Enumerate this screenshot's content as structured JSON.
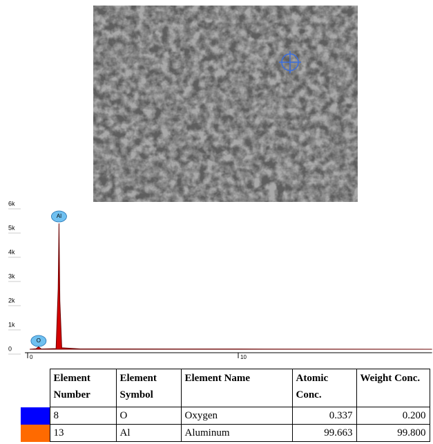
{
  "chart_data": {
    "type": "area",
    "color": "#d40000",
    "line_color": "#6b0000",
    "x": [
      0.1,
      0.4,
      0.52,
      0.65,
      1.35,
      1.45,
      1.49,
      1.53,
      1.62,
      2.5,
      10,
      19.2
    ],
    "values": [
      0,
      20,
      100,
      10,
      30,
      2500,
      5200,
      2000,
      60,
      15,
      10,
      0
    ],
    "xlim": [
      0,
      19.2
    ],
    "xticks": [
      0,
      10
    ],
    "ylim": [
      0,
      6000
    ],
    "yticks": [
      0,
      {
        "value": 1000,
        "label": "1k"
      },
      {
        "value": 2000,
        "label": "2k"
      },
      {
        "value": 3000,
        "label": "3k"
      },
      {
        "value": 4000,
        "label": "4k"
      },
      {
        "value": 5000,
        "label": "5k"
      },
      {
        "value": 6000,
        "label": "6k"
      }
    ],
    "annotations": [
      {
        "text": "Al",
        "x": 1.49,
        "y": 5486
      },
      {
        "text": "O",
        "x": 0.52,
        "y": 343
      }
    ],
    "annotation_color": "#6fc0f0"
  },
  "table": {
    "columns": [
      "Element Number",
      "Element Symbol",
      "Element Name",
      "Atomic Conc.",
      "Weight Conc."
    ],
    "row_colors": [
      "#0000ff",
      "#ff6a00"
    ],
    "rows": [
      [
        8,
        "O",
        "Oxygen",
        0.337,
        {
          "value": 0.2,
          "label": "0.200"
        }
      ],
      [
        13,
        "Al",
        "Aluminum",
        99.663,
        {
          "value": 99.8,
          "label": "99.800"
        }
      ]
    ]
  }
}
